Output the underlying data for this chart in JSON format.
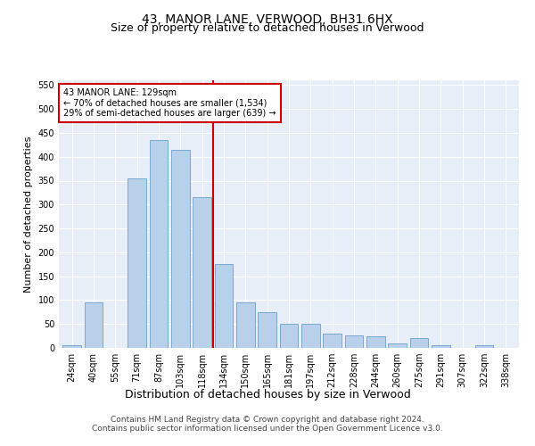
{
  "title": "43, MANOR LANE, VERWOOD, BH31 6HX",
  "subtitle": "Size of property relative to detached houses in Verwood",
  "xlabel": "Distribution of detached houses by size in Verwood",
  "ylabel": "Number of detached properties",
  "footer_line1": "Contains HM Land Registry data © Crown copyright and database right 2024.",
  "footer_line2": "Contains public sector information licensed under the Open Government Licence v3.0.",
  "categories": [
    "24sqm",
    "40sqm",
    "55sqm",
    "71sqm",
    "87sqm",
    "103sqm",
    "118sqm",
    "134sqm",
    "150sqm",
    "165sqm",
    "181sqm",
    "197sqm",
    "212sqm",
    "228sqm",
    "244sqm",
    "260sqm",
    "275sqm",
    "291sqm",
    "307sqm",
    "322sqm",
    "338sqm"
  ],
  "values": [
    5,
    95,
    0,
    355,
    435,
    415,
    315,
    175,
    95,
    75,
    50,
    50,
    30,
    27,
    24,
    10,
    20,
    5,
    0,
    5,
    0
  ],
  "bar_color": "#b8d0ea",
  "bar_edge_color": "#6aa0cc",
  "vline_color": "#cc0000",
  "annotation_text": "43 MANOR LANE: 129sqm\n← 70% of detached houses are smaller (1,534)\n29% of semi-detached houses are larger (639) →",
  "annotation_box_color": "#ffffff",
  "annotation_box_edge": "#cc0000",
  "ylim": [
    0,
    560
  ],
  "yticks": [
    0,
    50,
    100,
    150,
    200,
    250,
    300,
    350,
    400,
    450,
    500,
    550
  ],
  "bg_color": "#e8eef8",
  "title_fontsize": 10,
  "subtitle_fontsize": 9,
  "xlabel_fontsize": 9,
  "ylabel_fontsize": 8,
  "tick_fontsize": 7,
  "footer_fontsize": 6.5,
  "vline_index": 6.5
}
